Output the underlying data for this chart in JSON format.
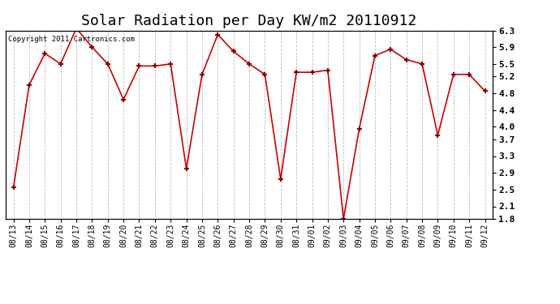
{
  "title": "Solar Radiation per Day KW/m2 20110912",
  "copyright": "Copyright 2011 Cartronics.com",
  "dates": [
    "08/13",
    "08/14",
    "08/15",
    "08/16",
    "08/17",
    "08/18",
    "08/19",
    "08/20",
    "08/21",
    "08/22",
    "08/23",
    "08/24",
    "08/25",
    "08/26",
    "08/27",
    "08/28",
    "08/29",
    "08/30",
    "08/31",
    "09/01",
    "09/02",
    "09/03",
    "09/04",
    "09/05",
    "09/06",
    "09/07",
    "09/08",
    "09/09",
    "09/10",
    "09/11",
    "09/12"
  ],
  "values": [
    2.55,
    5.0,
    5.75,
    5.5,
    6.35,
    5.9,
    5.5,
    4.65,
    5.45,
    5.45,
    5.5,
    3.0,
    5.25,
    6.2,
    5.8,
    5.5,
    5.25,
    2.75,
    5.3,
    5.3,
    5.35,
    1.8,
    3.95,
    5.7,
    5.85,
    5.6,
    5.5,
    3.8,
    5.25,
    5.25,
    4.85
  ],
  "line_color": "#cc0000",
  "marker_color": "#880000",
  "background_color": "#ffffff",
  "grid_color": "#bbbbbb",
  "ylim": [
    1.8,
    6.3
  ],
  "yticks": [
    1.8,
    2.1,
    2.5,
    2.9,
    3.3,
    3.7,
    4.0,
    4.4,
    4.8,
    5.2,
    5.5,
    5.9,
    6.3
  ],
  "title_fontsize": 13,
  "tick_fontsize": 7,
  "copyright_fontsize": 6.5
}
